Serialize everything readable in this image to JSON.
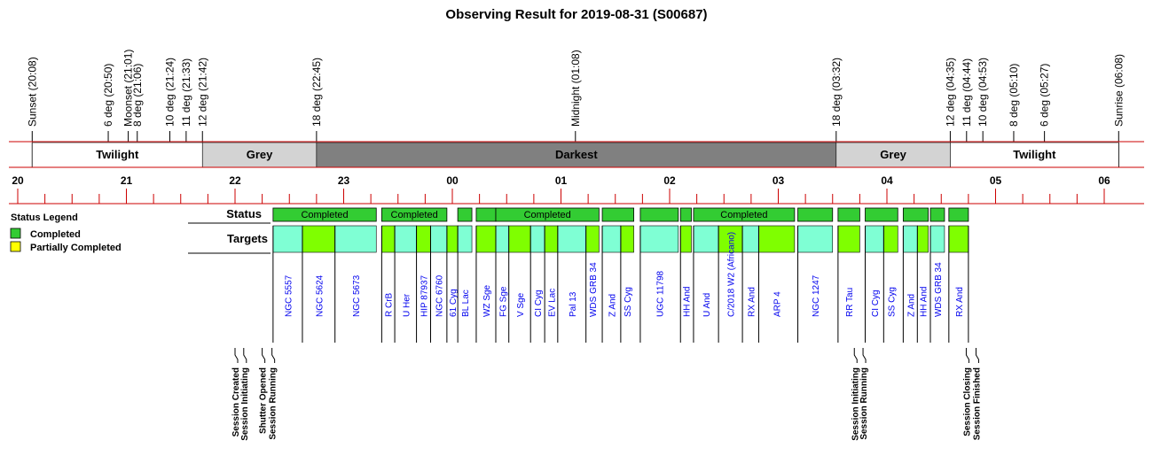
{
  "colors": {
    "completed": "#33cc33",
    "partial": "#ffff00",
    "target_aqua": "#7fffd4",
    "target_green": "#7fff00",
    "twilight": "#ffffff",
    "grey": "#d3d3d3",
    "darkest": "#808080",
    "axis_red": "#cc0000",
    "moon_blue": "#0000ee",
    "target_blue": "#0000ee"
  },
  "chart_data": {
    "type": "timeline",
    "title": "Observing Result for 2019-08-31 (S00687)",
    "time_range_hours": [
      19.9,
      30.17
    ],
    "events": [
      {
        "label": "Sunset (20:08)",
        "t": 20.133,
        "moon": false
      },
      {
        "label": "6 deg (20:50)",
        "t": 20.833,
        "moon": false
      },
      {
        "label": "Moonset (21:01)",
        "t": 21.017,
        "moon": true
      },
      {
        "label": "8 deg (21:06)",
        "t": 21.1,
        "moon": false
      },
      {
        "label": "10 deg (21:24)",
        "t": 21.4,
        "moon": false
      },
      {
        "label": "11 deg (21:33)",
        "t": 21.55,
        "moon": false
      },
      {
        "label": "12 deg (21:42)",
        "t": 21.7,
        "moon": false
      },
      {
        "label": "18 deg (22:45)",
        "t": 22.75,
        "moon": false
      },
      {
        "label": "Midnight (01:08)",
        "t": 25.133,
        "moon": false
      },
      {
        "label": "18 deg (03:32)",
        "t": 27.533,
        "moon": false
      },
      {
        "label": "12 deg (04:35)",
        "t": 28.583,
        "moon": false
      },
      {
        "label": "11 deg (04:44)",
        "t": 28.733,
        "moon": false
      },
      {
        "label": "10 deg (04:53)",
        "t": 28.883,
        "moon": false
      },
      {
        "label": "8 deg (05:10)",
        "t": 29.167,
        "moon": false
      },
      {
        "label": "6 deg (05:27)",
        "t": 29.45,
        "moon": false
      },
      {
        "label": "Sunrise (06:08)",
        "t": 30.133,
        "moon": false
      }
    ],
    "bands": [
      {
        "label": "Twilight",
        "start": 20.133,
        "end": 21.7,
        "kind": "twilight"
      },
      {
        "label": "Grey",
        "start": 21.7,
        "end": 22.75,
        "kind": "grey"
      },
      {
        "label": "Darkest",
        "start": 22.75,
        "end": 27.533,
        "kind": "darkest"
      },
      {
        "label": "Grey",
        "start": 27.533,
        "end": 28.583,
        "kind": "grey"
      },
      {
        "label": "Twilight",
        "start": 28.583,
        "end": 30.133,
        "kind": "twilight"
      }
    ],
    "hour_ticks": [
      "20",
      "21",
      "22",
      "23",
      "00",
      "01",
      "02",
      "03",
      "04",
      "05",
      "06"
    ],
    "row_labels": {
      "status": "Status",
      "targets": "Targets"
    },
    "status_blocks": [
      {
        "start": 22.35,
        "end": 23.3,
        "label": "Completed"
      },
      {
        "start": 23.35,
        "end": 23.95,
        "label": "Completed"
      },
      {
        "start": 24.05,
        "end": 24.18,
        "label": ""
      },
      {
        "start": 24.22,
        "end": 24.4,
        "label": ""
      },
      {
        "start": 24.4,
        "end": 25.35,
        "label": "Completed"
      },
      {
        "start": 25.38,
        "end": 25.67,
        "label": ""
      },
      {
        "start": 25.73,
        "end": 26.08,
        "label": ""
      },
      {
        "start": 26.1,
        "end": 26.2,
        "label": ""
      },
      {
        "start": 26.22,
        "end": 27.15,
        "label": "Completed"
      },
      {
        "start": 27.18,
        "end": 27.5,
        "label": ""
      },
      {
        "start": 27.55,
        "end": 27.75,
        "label": ""
      },
      {
        "start": 27.8,
        "end": 28.1,
        "label": ""
      },
      {
        "start": 28.15,
        "end": 28.38,
        "label": ""
      },
      {
        "start": 28.4,
        "end": 28.53,
        "label": ""
      },
      {
        "start": 28.57,
        "end": 28.75,
        "label": ""
      }
    ],
    "targets": [
      {
        "name": "NGC 5557",
        "start": 22.35,
        "end": 22.62,
        "fill": "aqua"
      },
      {
        "name": "NGC 5624",
        "start": 22.62,
        "end": 22.92,
        "fill": "green"
      },
      {
        "name": "NGC 5673",
        "start": 22.92,
        "end": 23.3,
        "fill": "aqua"
      },
      {
        "name": "R CrB",
        "start": 23.35,
        "end": 23.47,
        "fill": "green"
      },
      {
        "name": "U Her",
        "start": 23.47,
        "end": 23.67,
        "fill": "aqua"
      },
      {
        "name": "HIP 87937",
        "start": 23.67,
        "end": 23.8,
        "fill": "green"
      },
      {
        "name": "NGC 6760",
        "start": 23.8,
        "end": 23.95,
        "fill": "aqua"
      },
      {
        "name": "61 Cyg",
        "start": 23.95,
        "end": 24.05,
        "fill": "green"
      },
      {
        "name": "BL Lac",
        "start": 24.05,
        "end": 24.18,
        "fill": "aqua"
      },
      {
        "name": "WZ Sge",
        "start": 24.22,
        "end": 24.4,
        "fill": "green"
      },
      {
        "name": "FG Sge",
        "start": 24.4,
        "end": 24.52,
        "fill": "aqua"
      },
      {
        "name": "V Sge",
        "start": 24.52,
        "end": 24.72,
        "fill": "green"
      },
      {
        "name": "CI Cyg",
        "start": 24.72,
        "end": 24.85,
        "fill": "aqua"
      },
      {
        "name": "EV Lac",
        "start": 24.85,
        "end": 24.97,
        "fill": "green"
      },
      {
        "name": "Pal 13",
        "start": 24.97,
        "end": 25.23,
        "fill": "aqua"
      },
      {
        "name": "WDS GRB 34",
        "start": 25.23,
        "end": 25.35,
        "fill": "green"
      },
      {
        "name": "Z And",
        "start": 25.38,
        "end": 25.55,
        "fill": "aqua"
      },
      {
        "name": "SS Cyg",
        "start": 25.55,
        "end": 25.67,
        "fill": "green"
      },
      {
        "name": "UGC 11798",
        "start": 25.73,
        "end": 26.08,
        "fill": "aqua"
      },
      {
        "name": "HH And",
        "start": 26.1,
        "end": 26.2,
        "fill": "green"
      },
      {
        "name": "U And",
        "start": 26.22,
        "end": 26.45,
        "fill": "aqua"
      },
      {
        "name": "C/2018 W2 (Africano)",
        "start": 26.45,
        "end": 26.67,
        "fill": "green"
      },
      {
        "name": "RX And",
        "start": 26.67,
        "end": 26.82,
        "fill": "aqua"
      },
      {
        "name": "ARP 4",
        "start": 26.82,
        "end": 27.15,
        "fill": "green"
      },
      {
        "name": "NGC 1247",
        "start": 27.18,
        "end": 27.5,
        "fill": "aqua"
      },
      {
        "name": "RR Tau",
        "start": 27.55,
        "end": 27.75,
        "fill": "green"
      },
      {
        "name": "CI Cyg",
        "start": 27.8,
        "end": 27.97,
        "fill": "aqua"
      },
      {
        "name": "SS Cyg",
        "start": 27.97,
        "end": 28.1,
        "fill": "green"
      },
      {
        "name": "Z And",
        "start": 28.15,
        "end": 28.28,
        "fill": "aqua"
      },
      {
        "name": "HH And",
        "start": 28.28,
        "end": 28.38,
        "fill": "green"
      },
      {
        "name": "WDS GRB 34",
        "start": 28.4,
        "end": 28.53,
        "fill": "aqua"
      },
      {
        "name": "RX And",
        "start": 28.57,
        "end": 28.75,
        "fill": "green"
      }
    ],
    "session_logs": [
      {
        "label": "Session Created",
        "t": 22.0
      },
      {
        "label": "Session Initiating",
        "t": 22.08
      },
      {
        "label": "Shutter Opened",
        "t": 22.25
      },
      {
        "label": "Session Running",
        "t": 22.34
      },
      {
        "label": "Session Initiating",
        "t": 27.7
      },
      {
        "label": "Session Running",
        "t": 27.78
      },
      {
        "label": "Session Closing",
        "t": 28.73
      },
      {
        "label": "Session Finished",
        "t": 28.82
      }
    ],
    "legend": {
      "title": "Status Legend",
      "items": [
        {
          "label": "Completed",
          "color": "#33cc33"
        },
        {
          "label": "Partially Completed",
          "color": "#ffff00"
        }
      ]
    }
  }
}
